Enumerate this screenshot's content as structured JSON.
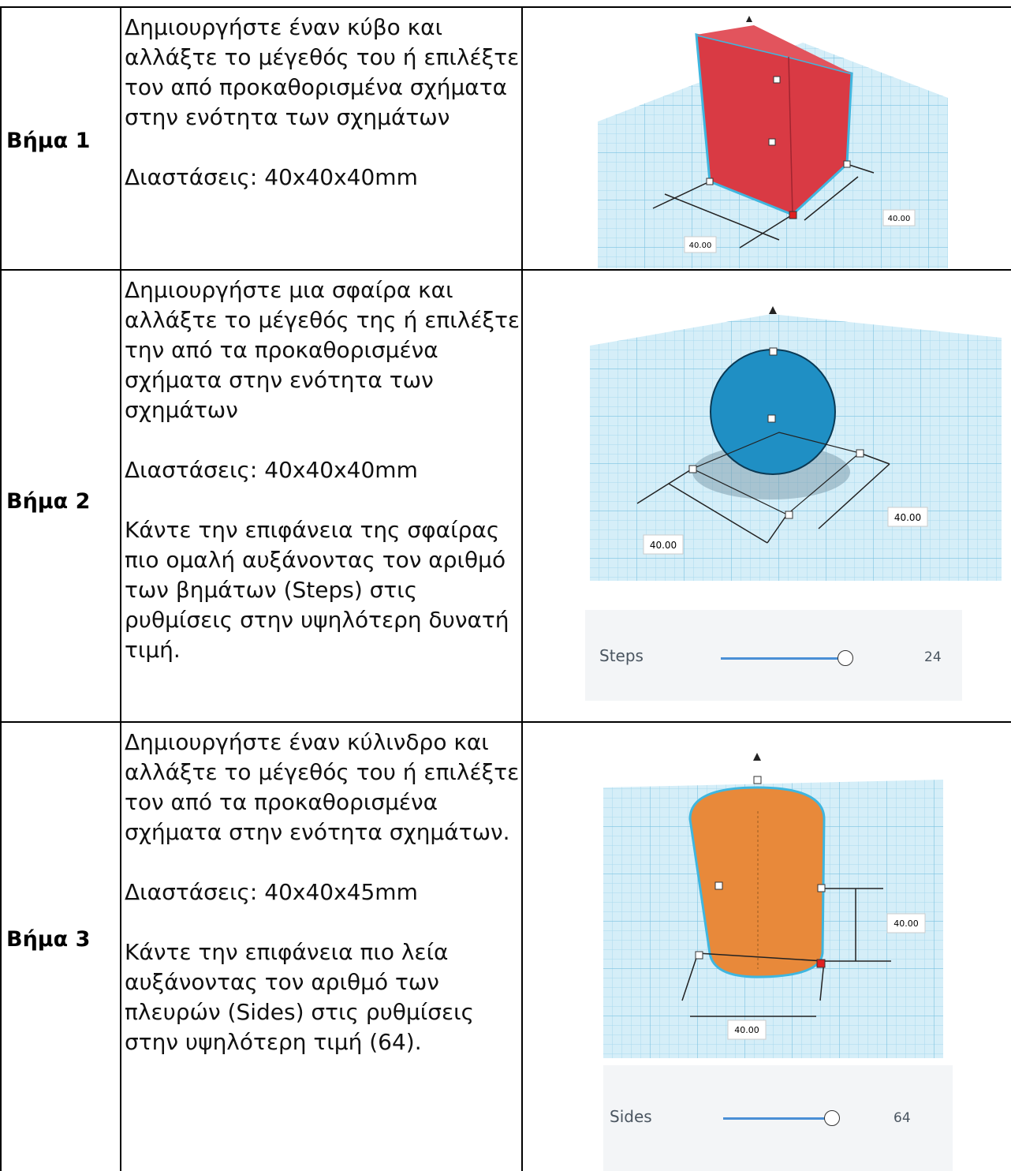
{
  "table": {
    "rows": [
      {
        "step": "Βήμα 1",
        "paragraphs": [
          "Δημιουργήστε έναν κύβο και αλλάξτε το μέγεθός του ή επιλέξτε τον από προκαθορισμένα σχήματα στην ενότητα των σχημάτων",
          "Διαστάσεις: 40x40x40mm"
        ],
        "image": {
          "dimension_labels": [
            "40.00",
            "40.00"
          ]
        }
      },
      {
        "step": "Βήμα 2",
        "paragraphs": [
          "Δημιουργήστε μια σφαίρα και αλλάξτε το μέγεθός της ή επιλέξτε την από τα προκαθορισμένα σχήματα στην ενότητα των σχημάτων",
          "Διαστάσεις: 40x40x40mm",
          "Κάντε την επιφάνεια της σφαίρας πιο ομαλή αυξάνοντας τον αριθμό των βημάτων (Steps) στις ρυθμίσεις στην υψηλότερη δυνατή τιμή."
        ],
        "image": {
          "dimension_labels": [
            "40.00",
            "40.00"
          ]
        },
        "slider": {
          "label": "Steps",
          "value": 24
        }
      },
      {
        "step": "Βήμα 3",
        "paragraphs": [
          "Δημιουργήστε έναν κύλινδρο και αλλάξτε το μέγεθός του ή επιλέξτε τον από τα προκαθορισμένα σχήματα στην ενότητα σχημάτων.",
          "Διαστάσεις: 40x40x45mm",
          "Κάντε την επιφάνεια πιο λεία αυξάνοντας τον αριθμό των πλευρών (Sides) στις ρυθμίσεις στην υψηλότερη τιμή (64)."
        ],
        "image": {
          "dimension_labels": [
            "40.00",
            "40.00"
          ]
        },
        "slider": {
          "label": "Sides",
          "value": 64
        }
      }
    ]
  }
}
